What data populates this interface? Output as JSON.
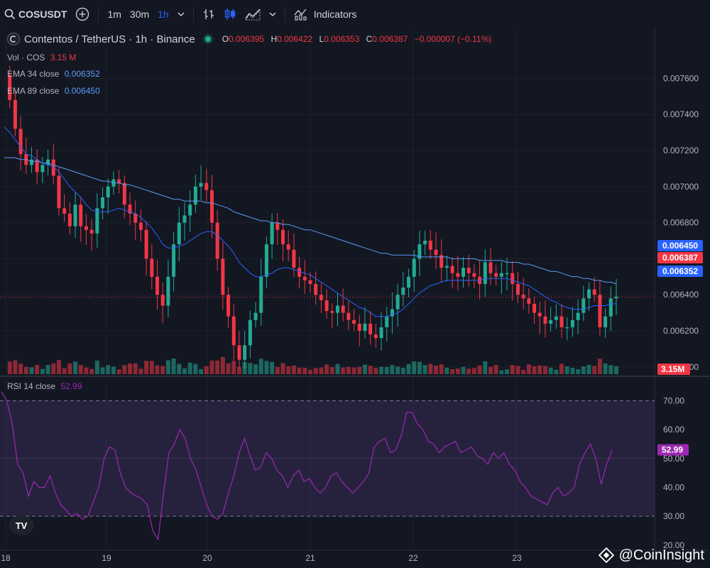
{
  "toolbar": {
    "symbol": "COSUSDT",
    "intervals": [
      "1m",
      "30m",
      "1h"
    ],
    "active_interval": "1h",
    "indicators_label": "Indicators"
  },
  "header": {
    "title": "Contentos / TetherUS · 1h · Binance",
    "ohlc": {
      "o": "0.006395",
      "h": "0.006422",
      "l": "0.006353",
      "c": "0.006387",
      "change": "−0.000007 (−0.11%)"
    },
    "vol_label": "Vol · COS",
    "vol_value": "3.15 M",
    "ema34_label": "EMA 34 close",
    "ema34_value": "0.006352",
    "ema89_label": "EMA 89 close",
    "ema89_value": "0.006450"
  },
  "rsi": {
    "label": "RSI 14 close",
    "value": "52.99"
  },
  "watermark": "@CoinInsight",
  "tv_logo": "TV",
  "colors": {
    "up": "#22ab94",
    "down": "#f23645",
    "ema34": "#2962ff",
    "ema89": "#5b9cf6",
    "rsi": "#9c27b0",
    "bg": "#131722",
    "grid": "#1e222d"
  },
  "chart_data": [
    {
      "type": "candlestick",
      "title": "Contentos / TetherUS · 1h · Binance",
      "ylim": [
        0.00596,
        0.00768
      ],
      "y_ticks": [
        "0.007600",
        "0.007400",
        "0.007200",
        "0.007000",
        "0.006800",
        "0.006600",
        "0.006400",
        "0.006200",
        "0.006000"
      ],
      "x_ticks": [
        "18",
        "19",
        "20",
        "21",
        "22",
        "23"
      ],
      "price_labels": [
        {
          "label": "0.006450",
          "value": 0.00645,
          "color": "#2962ff"
        },
        {
          "label": "0.006387",
          "value": 0.006387,
          "color": "#f23645"
        },
        {
          "label": "0.006352",
          "value": 0.006352,
          "color": "#2962ff"
        }
      ],
      "volume_label": "3.15M",
      "close_path": [
        0.00762,
        0.00748,
        0.00732,
        0.00718,
        0.00712,
        0.00715,
        0.00708,
        0.00712,
        0.00715,
        0.00706,
        0.00688,
        0.00685,
        0.00678,
        0.0069,
        0.00678,
        0.00676,
        0.00674,
        0.00688,
        0.00694,
        0.007,
        0.00704,
        0.00702,
        0.0069,
        0.00685,
        0.0068,
        0.00676,
        0.0066,
        0.0065,
        0.0064,
        0.00634,
        0.0065,
        0.00668,
        0.0068,
        0.00684,
        0.0069,
        0.007,
        0.00702,
        0.00698,
        0.0068,
        0.0066,
        0.0064,
        0.00628,
        0.00612,
        0.00604,
        0.00612,
        0.00626,
        0.0063,
        0.0065,
        0.00668,
        0.0068,
        0.00676,
        0.00668,
        0.00665,
        0.00655,
        0.0065,
        0.00648,
        0.00646,
        0.0064,
        0.00637,
        0.00631,
        0.0063,
        0.00634,
        0.0063,
        0.00626,
        0.00624,
        0.0062,
        0.00624,
        0.00618,
        0.00616,
        0.00622,
        0.00628,
        0.00632,
        0.0064,
        0.00644,
        0.0065,
        0.0066,
        0.00668,
        0.0067,
        0.00665,
        0.00662,
        0.00655,
        0.00656,
        0.00652,
        0.0065,
        0.00655,
        0.00652,
        0.0065,
        0.00646,
        0.00658,
        0.00652,
        0.0065,
        0.00652,
        0.00652,
        0.00646,
        0.0064,
        0.00638,
        0.00635,
        0.0063,
        0.00628,
        0.00624,
        0.00626,
        0.00628,
        0.00622,
        0.00622,
        0.00626,
        0.0063,
        0.00638,
        0.00643,
        0.0064,
        0.00622,
        0.00628,
        0.00638,
        0.00639
      ],
      "ema34_path": [
        0.00733,
        0.0073,
        0.00726,
        0.00722,
        0.00718,
        0.00717,
        0.00715,
        0.00713,
        0.00712,
        0.00711,
        0.00708,
        0.00704,
        0.007,
        0.00697,
        0.00694,
        0.0069,
        0.00687,
        0.00686,
        0.00686,
        0.00686,
        0.00687,
        0.00688,
        0.00687,
        0.00686,
        0.00685,
        0.00683,
        0.0068,
        0.00677,
        0.00673,
        0.00668,
        0.00666,
        0.00666,
        0.00667,
        0.00668,
        0.0067,
        0.00672,
        0.00674,
        0.00675,
        0.00675,
        0.00673,
        0.0067,
        0.00667,
        0.00663,
        0.00658,
        0.00655,
        0.00652,
        0.0065,
        0.0065,
        0.00651,
        0.00652,
        0.00654,
        0.00655,
        0.00655,
        0.00654,
        0.00653,
        0.00652,
        0.00651,
        0.00649,
        0.00647,
        0.00645,
        0.00643,
        0.00641,
        0.00639,
        0.00637,
        0.00635,
        0.00633,
        0.00632,
        0.0063,
        0.00628,
        0.00628,
        0.00628,
        0.00629,
        0.0063,
        0.00632,
        0.00635,
        0.00638,
        0.00641,
        0.00643,
        0.00645,
        0.00646,
        0.00647,
        0.00648,
        0.00648,
        0.00648,
        0.00648,
        0.00648,
        0.00648,
        0.00648,
        0.00649,
        0.00649,
        0.00649,
        0.00649,
        0.00649,
        0.00648,
        0.00647,
        0.00646,
        0.00645,
        0.00643,
        0.00641,
        0.00639,
        0.00637,
        0.00636,
        0.00634,
        0.00633,
        0.00632,
        0.00632,
        0.00632,
        0.00633,
        0.00634,
        0.00634,
        0.00634,
        0.00635,
        0.00635
      ],
      "ema89_path": [
        0.00716,
        0.00716,
        0.00716,
        0.00715,
        0.00715,
        0.00714,
        0.00714,
        0.00713,
        0.00713,
        0.00712,
        0.00711,
        0.0071,
        0.00709,
        0.00708,
        0.00707,
        0.00706,
        0.00705,
        0.00704,
        0.00703,
        0.00703,
        0.00702,
        0.00702,
        0.00701,
        0.00701,
        0.007,
        0.00699,
        0.00698,
        0.00697,
        0.00696,
        0.00695,
        0.00694,
        0.00693,
        0.00693,
        0.00692,
        0.00692,
        0.00692,
        0.00692,
        0.00691,
        0.00691,
        0.0069,
        0.00689,
        0.00688,
        0.00686,
        0.00685,
        0.00684,
        0.00683,
        0.00682,
        0.00681,
        0.00681,
        0.0068,
        0.0068,
        0.00679,
        0.00679,
        0.00678,
        0.00677,
        0.00676,
        0.00676,
        0.00675,
        0.00674,
        0.00673,
        0.00672,
        0.00671,
        0.0067,
        0.00669,
        0.00668,
        0.00667,
        0.00666,
        0.00665,
        0.00664,
        0.00663,
        0.00663,
        0.00662,
        0.00662,
        0.00662,
        0.00662,
        0.00662,
        0.00661,
        0.00661,
        0.00661,
        0.00661,
        0.00661,
        0.00661,
        0.0066,
        0.0066,
        0.0066,
        0.0066,
        0.0066,
        0.00659,
        0.00659,
        0.00659,
        0.00659,
        0.00659,
        0.00658,
        0.00658,
        0.00658,
        0.00657,
        0.00657,
        0.00656,
        0.00655,
        0.00654,
        0.00653,
        0.00653,
        0.00652,
        0.00651,
        0.0065,
        0.0065,
        0.00649,
        0.00649,
        0.00648,
        0.00648,
        0.00647,
        0.00647,
        0.00646
      ]
    },
    {
      "type": "line",
      "title": "RSI 14 close",
      "ylim": [
        17.5,
        76
      ],
      "y_ticks": [
        "70.00",
        "60.00",
        "50.00",
        "40.00",
        "30.00",
        "20.00"
      ],
      "band": [
        30,
        70
      ],
      "current_label": "52.99",
      "values": [
        73,
        70,
        62,
        48,
        45,
        37,
        42,
        40,
        40,
        44,
        38,
        34,
        32,
        30,
        31,
        29,
        30,
        35,
        40,
        50,
        54,
        53,
        45,
        40,
        38,
        37,
        36,
        34,
        25,
        22,
        38,
        52,
        55,
        60,
        57,
        50,
        46,
        40,
        34,
        30,
        29,
        31,
        38,
        44,
        52,
        57,
        51,
        46,
        47,
        52,
        50,
        46,
        44,
        40,
        44,
        46,
        42,
        43,
        40,
        38,
        40,
        44,
        45,
        42,
        40,
        38,
        40,
        42,
        45,
        54,
        56,
        57,
        52,
        53,
        58,
        66,
        66,
        62,
        60,
        56,
        55,
        52,
        54,
        55,
        56,
        52,
        53,
        54,
        51,
        50,
        48,
        52,
        50,
        52,
        48,
        46,
        42,
        40,
        37,
        36,
        35,
        34,
        38,
        40,
        37,
        38,
        40,
        48,
        52,
        55,
        50,
        41,
        48,
        53
      ]
    }
  ]
}
